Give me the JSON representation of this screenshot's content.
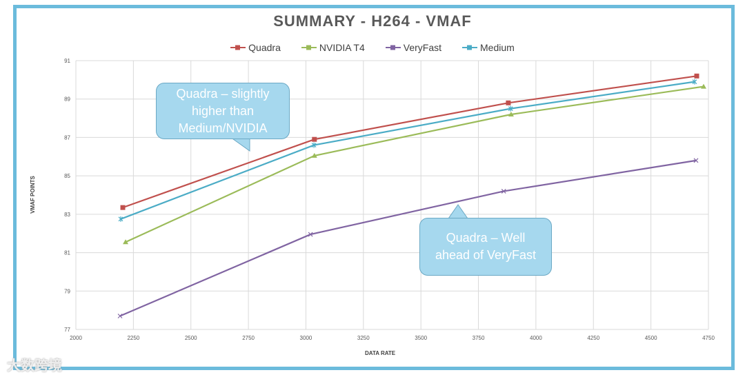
{
  "chart_data": {
    "type": "line",
    "title": "SUMMARY - H264 - VMAF",
    "xlabel": "DATA RATE",
    "ylabel": "VMAF POINTS",
    "xlim": [
      2000,
      4750
    ],
    "ylim": [
      77,
      91
    ],
    "xticks": [
      2000,
      2250,
      2500,
      2750,
      3000,
      3250,
      3500,
      3750,
      4000,
      4250,
      4500,
      4750
    ],
    "yticks": [
      77,
      79,
      81,
      83,
      85,
      87,
      89,
      91
    ],
    "grid": true,
    "legend_position": "top",
    "series": [
      {
        "name": "Quadra",
        "color": "#c0504d",
        "marker": "square",
        "x": [
          2204,
          3037,
          3880,
          4699
        ],
        "y": [
          83.35,
          86.9,
          88.8,
          90.2
        ]
      },
      {
        "name": "NVIDIA T4",
        "color": "#9bbb59",
        "marker": "triangle",
        "x": [
          2216,
          3037,
          3892,
          4729
        ],
        "y": [
          81.55,
          86.05,
          88.2,
          89.65
        ]
      },
      {
        "name": "VeryFast",
        "color": "#8064a2",
        "marker": "x",
        "x": [
          2192,
          3020,
          3860,
          4696
        ],
        "y": [
          77.7,
          81.95,
          84.2,
          85.8
        ]
      },
      {
        "name": "Medium",
        "color": "#4bacc6",
        "marker": "star",
        "x": [
          2195,
          3035,
          3890,
          4690
        ],
        "y": [
          82.75,
          86.6,
          88.5,
          89.9
        ]
      }
    ],
    "annotations": [
      "Quadra – slightly higher than Medium/NVIDIA",
      "Quadra – Well ahead of VeryFast"
    ]
  },
  "watermark": "大数跨境"
}
